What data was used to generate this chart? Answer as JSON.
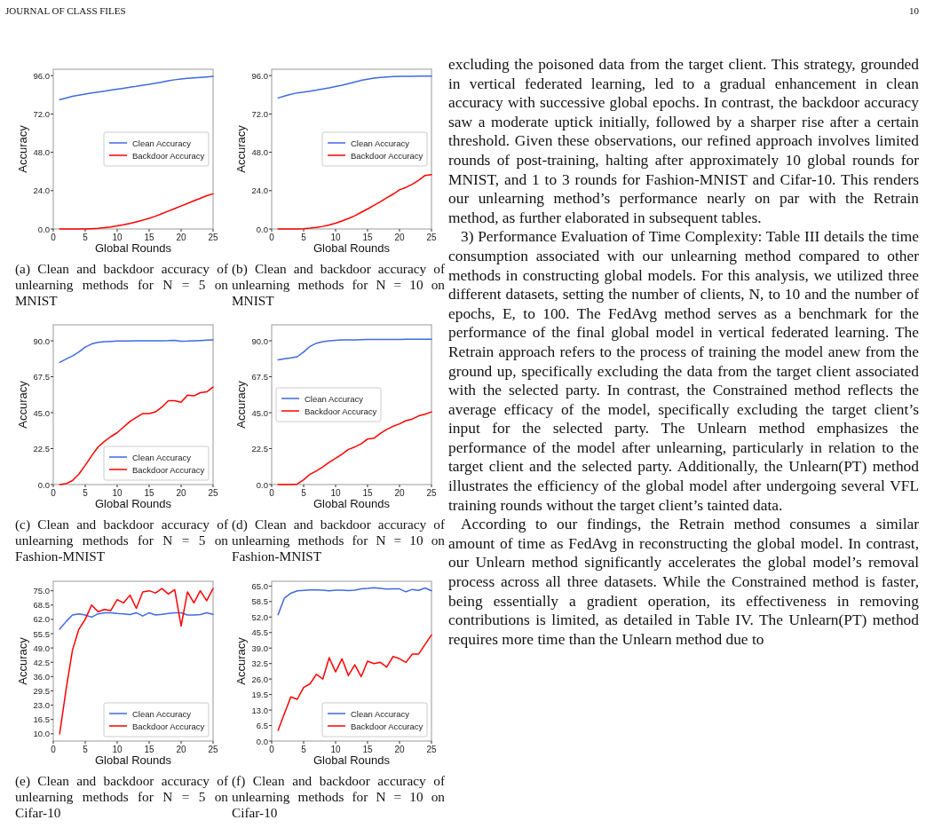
{
  "chart_data": [
    {
      "type": "line",
      "xlabel": "Global Rounds",
      "ylabel": "Accuracy",
      "annotations": [
        "(a) Clean and backdoor accuracy of unlearning methods for N = 5 on MNIST"
      ],
      "x": [
        1,
        2,
        3,
        4,
        5,
        6,
        7,
        8,
        9,
        10,
        11,
        12,
        13,
        14,
        15,
        16,
        17,
        18,
        19,
        20,
        21,
        22,
        23,
        24,
        25
      ],
      "xlim": [
        0,
        25
      ],
      "xticks": [
        0,
        5,
        10,
        15,
        20,
        25
      ],
      "ylim": [
        0,
        100
      ],
      "yticks": [
        {
          "value": 0,
          "label": "0.0"
        },
        {
          "value": 24,
          "label": "24.0"
        },
        {
          "value": 48,
          "label": "48.0"
        },
        {
          "value": 72,
          "label": "72.0"
        },
        {
          "value": 96,
          "label": "96.0"
        }
      ],
      "legend": "right",
      "grid": false,
      "series": [
        {
          "name": "Clean Accuracy",
          "color": "#4169e1",
          "values": [
            81,
            82,
            83,
            83.8,
            84.5,
            85.1,
            85.7,
            86.3,
            86.9,
            87.5,
            88.1,
            88.7,
            89.3,
            90,
            90.6,
            91.3,
            92,
            92.8,
            93.4,
            93.9,
            94.3,
            94.6,
            94.9,
            95.2,
            95.5
          ]
        },
        {
          "name": "Backdoor Accuracy",
          "color": "#ff0000",
          "values": [
            0,
            0,
            0,
            0,
            0,
            0.2,
            0.4,
            0.8,
            1.3,
            1.9,
            2.6,
            3.5,
            4.5,
            5.5,
            6.7,
            8,
            9.6,
            11.2,
            12.8,
            14.4,
            16,
            17.6,
            19.2,
            20.8,
            22
          ]
        }
      ]
    },
    {
      "type": "line",
      "xlabel": "Global Rounds",
      "ylabel": "Accuracy",
      "annotations": [
        "(b) Clean and backdoor accuracy of unlearning methods for N = 10 on MNIST"
      ],
      "x": [
        1,
        2,
        3,
        4,
        5,
        6,
        7,
        8,
        9,
        10,
        11,
        12,
        13,
        14,
        15,
        16,
        17,
        18,
        19,
        20,
        21,
        22,
        23,
        24,
        25
      ],
      "xlim": [
        0,
        25
      ],
      "xticks": [
        0,
        5,
        10,
        15,
        20,
        25
      ],
      "ylim": [
        0,
        100
      ],
      "yticks": [
        {
          "value": 0,
          "label": "0.0"
        },
        {
          "value": 24,
          "label": "24.0"
        },
        {
          "value": 48,
          "label": "48.0"
        },
        {
          "value": 72,
          "label": "72.0"
        },
        {
          "value": 96,
          "label": "96.0"
        }
      ],
      "legend": "right",
      "grid": false,
      "series": [
        {
          "name": "Clean Accuracy",
          "color": "#4169e1",
          "values": [
            82,
            83.2,
            84.3,
            85.2,
            85.7,
            86.3,
            86.9,
            87.6,
            88.3,
            89.2,
            90,
            91,
            92,
            93,
            93.8,
            94.4,
            94.9,
            95.2,
            95.4,
            95.5,
            95.6,
            95.6,
            95.7,
            95.7,
            95.7
          ]
        },
        {
          "name": "Backdoor Accuracy",
          "color": "#ff0000",
          "values": [
            0,
            0,
            0,
            0,
            0.2,
            0.5,
            1,
            1.6,
            2.5,
            3.6,
            5,
            6.5,
            8.3,
            10.4,
            12.5,
            14.8,
            17,
            19.5,
            21.8,
            24.5,
            26,
            28,
            30.5,
            33.5,
            34
          ]
        }
      ]
    },
    {
      "type": "line",
      "xlabel": "Global Rounds",
      "ylabel": "Accuracy",
      "annotations": [
        "(c) Clean and backdoor accuracy of unlearning methods for N = 5 on Fashion-MNIST"
      ],
      "x": [
        1,
        2,
        3,
        4,
        5,
        6,
        7,
        8,
        9,
        10,
        11,
        12,
        13,
        14,
        15,
        16,
        17,
        18,
        19,
        20,
        21,
        22,
        23,
        24,
        25
      ],
      "xlim": [
        0,
        25
      ],
      "xticks": [
        0,
        5,
        10,
        15,
        20,
        25
      ],
      "ylim": [
        0,
        100
      ],
      "yticks": [
        {
          "value": 0,
          "label": "0.0"
        },
        {
          "value": 22.5,
          "label": "22.5"
        },
        {
          "value": 45,
          "label": "45.0"
        },
        {
          "value": 67.5,
          "label": "67.5"
        },
        {
          "value": 90,
          "label": "90.0"
        }
      ],
      "legend": "bottom right",
      "grid": false,
      "series": [
        {
          "name": "Clean Accuracy",
          "color": "#4169e1",
          "values": [
            76.5,
            78.5,
            80.5,
            83,
            86,
            88,
            89,
            89.4,
            89.6,
            89.8,
            89.9,
            89.9,
            90,
            90,
            90,
            90,
            90,
            90.1,
            90.3,
            89.7,
            89.8,
            90,
            90.2,
            90.4,
            90.5
          ]
        },
        {
          "name": "Backdoor Accuracy",
          "color": "#ff0000",
          "values": [
            0,
            0.5,
            2.5,
            6.5,
            12,
            18,
            23.5,
            27,
            30,
            32.5,
            36,
            39.5,
            42,
            44.5,
            44.5,
            45.5,
            48.5,
            52.5,
            52.5,
            51.5,
            56,
            55.5,
            57.5,
            58,
            61
          ]
        }
      ]
    },
    {
      "type": "line",
      "xlabel": "Global Rounds",
      "ylabel": "Accuracy",
      "annotations": [
        "(d) Clean and backdoor accuracy of unlearning methods for N = 10 on Fashion-MNIST"
      ],
      "x": [
        1,
        2,
        3,
        4,
        5,
        6,
        7,
        8,
        9,
        10,
        11,
        12,
        13,
        14,
        15,
        16,
        17,
        18,
        19,
        20,
        21,
        22,
        23,
        24,
        25
      ],
      "xlim": [
        0,
        25
      ],
      "xticks": [
        0,
        5,
        10,
        15,
        20,
        25
      ],
      "ylim": [
        0,
        100
      ],
      "yticks": [
        {
          "value": 0,
          "label": "0.0"
        },
        {
          "value": 22.5,
          "label": "22.5"
        },
        {
          "value": 45,
          "label": "45.0"
        },
        {
          "value": 67.5,
          "label": "67.5"
        },
        {
          "value": 90,
          "label": "90.0"
        }
      ],
      "legend": "left",
      "grid": false,
      "series": [
        {
          "name": "Clean Accuracy",
          "color": "#4169e1",
          "values": [
            78,
            78.7,
            79.3,
            80,
            83,
            86.5,
            88.5,
            89.5,
            90,
            90.3,
            90.5,
            90.6,
            90.6,
            90.7,
            90.8,
            90.9,
            90.8,
            90.8,
            90.9,
            90.9,
            91,
            91,
            91,
            91,
            91
          ]
        },
        {
          "name": "Backdoor Accuracy",
          "color": "#ff0000",
          "values": [
            0,
            0,
            0,
            0.3,
            3,
            6.5,
            8.5,
            11,
            14,
            16.5,
            19,
            22,
            23.5,
            25.5,
            28.5,
            29,
            32,
            34.5,
            36.5,
            38,
            40,
            41,
            43,
            44,
            45.5
          ]
        }
      ]
    },
    {
      "type": "line",
      "xlabel": "Global Rounds",
      "ylabel": "Accuracy",
      "annotations": [
        "(e) Clean and backdoor accuracy of unlearning methods for N = 5 on Cifar-10"
      ],
      "x": [
        1,
        2,
        3,
        4,
        5,
        6,
        7,
        8,
        9,
        10,
        11,
        12,
        13,
        14,
        15,
        16,
        17,
        18,
        19,
        20,
        21,
        22,
        23,
        24,
        25
      ],
      "xlim": [
        0,
        25
      ],
      "xticks": [
        0,
        5,
        10,
        15,
        20,
        25
      ],
      "ylim": [
        6.7,
        79.3
      ],
      "yticks": [
        {
          "value": 10,
          "label": "10.0"
        },
        {
          "value": 16.5,
          "label": "16.5"
        },
        {
          "value": 23,
          "label": "23.0"
        },
        {
          "value": 29.5,
          "label": "29.5"
        },
        {
          "value": 36,
          "label": "36.0"
        },
        {
          "value": 42.5,
          "label": "42.5"
        },
        {
          "value": 49,
          "label": "49.0"
        },
        {
          "value": 55.5,
          "label": "55.5"
        },
        {
          "value": 62,
          "label": "62.0"
        },
        {
          "value": 68.5,
          "label": "68.5"
        },
        {
          "value": 75,
          "label": "75.0"
        }
      ],
      "legend": "bottom right",
      "grid": false,
      "series": [
        {
          "name": "Clean Accuracy",
          "color": "#4169e1",
          "values": [
            57.5,
            61,
            64,
            64.5,
            64,
            63,
            64.5,
            65,
            65,
            64.7,
            64.5,
            64.2,
            65,
            63.5,
            65,
            64,
            64.3,
            64.7,
            65,
            65,
            64,
            64,
            64.2,
            65,
            64.3
          ]
        },
        {
          "name": "Backdoor Accuracy",
          "color": "#ff0000",
          "values": [
            10,
            30,
            48,
            57.5,
            62,
            68.5,
            65.5,
            66.5,
            66,
            71,
            69.5,
            73,
            67,
            74.5,
            75,
            74,
            76,
            73.5,
            75.5,
            59,
            74.5,
            69.5,
            75,
            70.5,
            76
          ]
        }
      ]
    },
    {
      "type": "line",
      "xlabel": "Global Rounds",
      "ylabel": "Accuracy",
      "annotations": [
        "(f) Clean and backdoor accuracy of unlearning methods for N = 10 on Cifar-10"
      ],
      "x": [
        1,
        2,
        3,
        4,
        5,
        6,
        7,
        8,
        9,
        10,
        11,
        12,
        13,
        14,
        15,
        16,
        17,
        18,
        19,
        20,
        21,
        22,
        23,
        24,
        25
      ],
      "xlim": [
        0,
        25
      ],
      "xticks": [
        0,
        5,
        10,
        15,
        20,
        25
      ],
      "ylim": [
        0,
        67
      ],
      "yticks": [
        {
          "value": 0,
          "label": "0.0"
        },
        {
          "value": 6.5,
          "label": "6.5"
        },
        {
          "value": 13,
          "label": "13.0"
        },
        {
          "value": 19.5,
          "label": "19.5"
        },
        {
          "value": 26,
          "label": "26.0"
        },
        {
          "value": 32.5,
          "label": "32.5"
        },
        {
          "value": 39,
          "label": "39.0"
        },
        {
          "value": 45.5,
          "label": "45.5"
        },
        {
          "value": 52,
          "label": "52.0"
        },
        {
          "value": 58.5,
          "label": "58.5"
        },
        {
          "value": 65,
          "label": "65.0"
        }
      ],
      "legend": "bottom right",
      "grid": false,
      "series": [
        {
          "name": "Clean Accuracy",
          "color": "#4169e1",
          "values": [
            53,
            60,
            62,
            63,
            63.2,
            63.4,
            63.4,
            63.3,
            63,
            63.3,
            63.3,
            63.1,
            63.3,
            63.8,
            64,
            64.3,
            64,
            63.7,
            63.8,
            63.8,
            62.6,
            63.6,
            63.2,
            64.2,
            63
          ]
        },
        {
          "name": "Backdoor Accuracy",
          "color": "#ff0000",
          "values": [
            4.5,
            11.5,
            18.5,
            17.5,
            22.5,
            24,
            28,
            26,
            35,
            29,
            34.5,
            27.5,
            32,
            27,
            33.5,
            32.5,
            33,
            31,
            35.5,
            34.5,
            33,
            36.5,
            36.5,
            40.5,
            44.5
          ]
        }
      ]
    },
    {
      "type": "other",
      "annotations": [
        "JOURNAL OF CLASS FILES",
        "10",
        "excluding the poisoned data from the target client. This strategy, grounded in vertical federated learning, led to a gradual enhancement in clean accuracy with successive global epochs. In contrast, the backdoor accuracy saw a moderate uptick initially, followed by a sharper rise after a certain threshold. Given these observations, our refined approach involves limited rounds of post-training, halting after approximately 10 global rounds for MNIST, and 1 to 3 rounds for Fashion-MNIST and Cifar-10. This renders our unlearning method’s performance nearly on par with the Retrain method, as further elaborated in subsequent tables.",
        "3) Performance Evaluation of Time Complexity: Table III details the time consumption associated with our unlearning method compared to other methods in constructing global models. For this analysis, we utilized three different datasets, setting the number of clients, N, to 10 and the number of epochs, E, to 100. The FedAvg method serves as a benchmark for the performance of the final global model in vertical federated learning. The Retrain approach refers to the process of training the model anew from the ground up, specifically excluding the data from the target client associated with the selected party. In contrast, the Constrained method reflects the average efficacy of the model, specifically excluding the target client’s input for the selected party. The Unlearn method emphasizes the performance of the model after unlearning, particularly in relation to the target client and the selected party. Additionally, the Unlearn(PT) method illustrates the efficiency of the global model after undergoing several VFL training rounds without the target client’s tainted data.",
        "According to our findings, the Retrain method consumes a similar amount of time as FedAvg in reconstructing the global model. In contrast, our Unlearn method significantly accelerates the global model’s removal process across all three datasets. While the Constrained method is faster, being essentially a gradient operation, its effectiveness in removing contributions is limited, as detailed in Table IV. The Unlearn(PT) method requires more time than the Unlearn method due to"
      ]
    }
  ]
}
